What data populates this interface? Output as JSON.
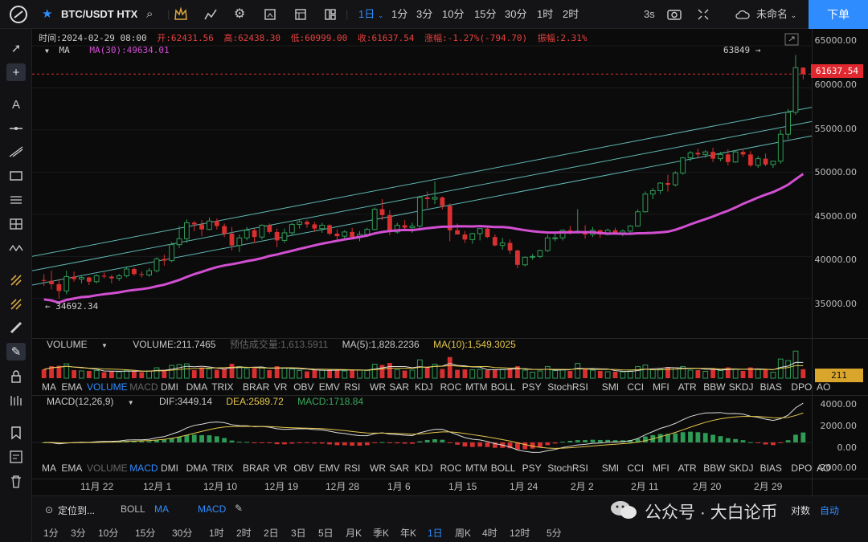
{
  "topbar": {
    "symbol": "BTC/USDT HTX",
    "timeframes": [
      "1日",
      "1分",
      "3分",
      "10分",
      "15分",
      "30分",
      "1时",
      "2时"
    ],
    "active_timeframe": "1日",
    "interval_label": "3s",
    "layout_name": "未命名",
    "order_button": "下单"
  },
  "ohlc": {
    "time": "时间:2024-02-29 08:00",
    "open": "开:62431.56",
    "high": "高:62438.30",
    "low": "低:60999.00",
    "close": "收:61637.54",
    "change": "涨幅:-1.27%(-794.70)",
    "amplitude": "振幅:2.31%"
  },
  "ma_legend": {
    "label": "MA",
    "value": "MA(30):49634.01"
  },
  "price_axis": {
    "ticks": [
      "65000.00",
      "60000.00",
      "55000.00",
      "50000.00",
      "45000.00",
      "40000.00",
      "35000.00"
    ],
    "current_price": "61637.54",
    "high_marker": "63849",
    "low_marker": "34692.34"
  },
  "volume_panel": {
    "label": "VOLUME",
    "volume": "VOLUME:211.7465",
    "estimated": "预估成交量:1,613.5911",
    "ma5": "MA(5):1,828.2236",
    "ma10": "MA(10):1,549.3025",
    "current": "211"
  },
  "indicator_tabs": [
    "MA",
    "EMA",
    "VOLUME",
    "MACD",
    "DMI",
    "DMA",
    "TRIX",
    "BRAR",
    "VR",
    "OBV",
    "EMV",
    "RSI",
    "WR",
    "SAR",
    "KDJ",
    "ROC",
    "MTM",
    "BOLL",
    "PSY",
    "StochRSI",
    "SMI",
    "CCI",
    "MFI",
    "ATR",
    "BBW",
    "SKDJ",
    "BIAS",
    "DPO",
    "AO"
  ],
  "macd_panel": {
    "label": "MACD(12,26,9)",
    "dif": "DIF:3449.14",
    "dea": "DEA:2589.72",
    "macd": "MACD:1718.84",
    "ticks": [
      "4000.00",
      "2000.00",
      "0.00",
      "-2000.00"
    ]
  },
  "date_axis": [
    "11月 22",
    "12月 1",
    "12月 10",
    "12月 19",
    "12月 28",
    "1月 6",
    "1月 15",
    "1月 24",
    "2月 2",
    "2月 11",
    "2月 20",
    "2月 29"
  ],
  "bottombar": {
    "locate": "定位到...",
    "indicators": [
      "BOLL",
      "MA",
      "MACD"
    ],
    "periods": [
      "1分",
      "3分",
      "10分",
      "15分",
      "30分",
      "1时",
      "2时",
      "2日",
      "3日",
      "5日",
      "月K",
      "季K",
      "年K",
      "1日",
      "周K",
      "4时",
      "12时",
      "5分"
    ],
    "active_period": "1日",
    "watermark": "公众号 · 大白论币",
    "auto": "自动",
    "log": "对数"
  },
  "chart_data": {
    "type": "candlestick",
    "ylim": [
      30500,
      67000
    ],
    "candles": [
      [
        37200,
        37900,
        36500,
        37100
      ],
      [
        37100,
        38300,
        36100,
        36700
      ],
      [
        36700,
        37300,
        35000,
        35900
      ],
      [
        35900,
        38300,
        35500,
        37600
      ],
      [
        37600,
        38200,
        37000,
        37300
      ],
      [
        37300,
        37800,
        36800,
        37500
      ],
      [
        37500,
        37600,
        36600,
        37000
      ],
      [
        37000,
        37900,
        36800,
        37700
      ],
      [
        37700,
        38100,
        37400,
        37600
      ],
      [
        37600,
        37800,
        36800,
        37400
      ],
      [
        37400,
        37900,
        37100,
        37700
      ],
      [
        37700,
        38700,
        37500,
        38500
      ],
      [
        38500,
        38700,
        37700,
        37900
      ],
      [
        37900,
        38200,
        37500,
        37800
      ],
      [
        37800,
        38600,
        37600,
        38300
      ],
      [
        38300,
        39900,
        38100,
        39700
      ],
      [
        39700,
        40200,
        38900,
        39500
      ],
      [
        39500,
        41700,
        39300,
        41400
      ],
      [
        41400,
        43600,
        41000,
        42100
      ],
      [
        42100,
        44400,
        41600,
        44000
      ],
      [
        44000,
        44200,
        43000,
        43800
      ],
      [
        43800,
        44300,
        42400,
        43200
      ],
      [
        43200,
        44600,
        43100,
        44200
      ],
      [
        44200,
        44500,
        43200,
        43600
      ],
      [
        43600,
        43900,
        42300,
        42700
      ],
      [
        42700,
        43500,
        40700,
        41300
      ],
      [
        41300,
        42600,
        40500,
        42200
      ],
      [
        42200,
        43500,
        41900,
        43100
      ],
      [
        43100,
        43300,
        41600,
        42300
      ],
      [
        42300,
        43800,
        42000,
        43700
      ],
      [
        43700,
        43900,
        42700,
        42900
      ],
      [
        42900,
        43300,
        41100,
        41900
      ],
      [
        41900,
        43300,
        41600,
        42800
      ],
      [
        42800,
        44000,
        42500,
        43800
      ],
      [
        43800,
        44400,
        43300,
        44100
      ],
      [
        44100,
        44300,
        43400,
        43800
      ],
      [
        43800,
        44100,
        42900,
        43300
      ],
      [
        43300,
        44000,
        42800,
        43700
      ],
      [
        43700,
        43800,
        42500,
        42700
      ],
      [
        42700,
        43200,
        41800,
        42400
      ],
      [
        42400,
        43100,
        42100,
        42900
      ],
      [
        42900,
        43400,
        42000,
        42300
      ],
      [
        42300,
        43000,
        41800,
        42600
      ],
      [
        42600,
        43400,
        42300,
        43200
      ],
      [
        43200,
        45800,
        43100,
        45600
      ],
      [
        45600,
        46800,
        44300,
        44900
      ],
      [
        44900,
        45500,
        42500,
        42900
      ],
      [
        42900,
        44000,
        42700,
        43700
      ],
      [
        43700,
        44300,
        43200,
        43400
      ],
      [
        43400,
        44000,
        42800,
        43600
      ],
      [
        43600,
        47200,
        43400,
        47000
      ],
      [
        47000,
        47700,
        45700,
        46800
      ],
      [
        46800,
        48900,
        46200,
        47000
      ],
      [
        47000,
        47100,
        45600,
        46000
      ],
      [
        46000,
        46300,
        41800,
        43100
      ],
      [
        43100,
        43900,
        42600,
        42600
      ],
      [
        42600,
        43000,
        41600,
        42000
      ],
      [
        42000,
        42800,
        41500,
        42700
      ],
      [
        42700,
        43300,
        41900,
        43300
      ],
      [
        43300,
        43400,
        42200,
        42300
      ],
      [
        42300,
        42600,
        41200,
        41300
      ],
      [
        41300,
        42200,
        40800,
        41600
      ],
      [
        41600,
        42000,
        40300,
        40700
      ],
      [
        40700,
        40800,
        38600,
        39000
      ],
      [
        39000,
        40000,
        38800,
        39900
      ],
      [
        39900,
        40300,
        39600,
        40000
      ],
      [
        40000,
        40800,
        39800,
        40700
      ],
      [
        40700,
        42600,
        40500,
        42200
      ],
      [
        42200,
        42900,
        41800,
        42200
      ],
      [
        42200,
        43200,
        41900,
        43100
      ],
      [
        43100,
        43600,
        42600,
        42800
      ],
      [
        42800,
        45600,
        42700,
        43000
      ],
      [
        43000,
        43700,
        42100,
        42600
      ],
      [
        42600,
        43500,
        42300,
        43100
      ],
      [
        43100,
        43200,
        42200,
        42600
      ],
      [
        42600,
        43300,
        42500,
        43100
      ],
      [
        43100,
        43400,
        42600,
        42800
      ],
      [
        42800,
        43200,
        42400,
        43000
      ],
      [
        43000,
        43700,
        42700,
        43600
      ],
      [
        43600,
        45600,
        43500,
        45300
      ],
      [
        45300,
        47700,
        45200,
        47400
      ],
      [
        47400,
        48100,
        46800,
        47800
      ],
      [
        47800,
        48800,
        47400,
        48700
      ],
      [
        48700,
        49700,
        47700,
        48500
      ],
      [
        48500,
        50100,
        48300,
        49900
      ],
      [
        49900,
        51800,
        49700,
        51700
      ],
      [
        51700,
        52500,
        51300,
        52300
      ],
      [
        52300,
        52800,
        51600,
        52100
      ],
      [
        52100,
        52600,
        51700,
        52400
      ],
      [
        52400,
        52900,
        51200,
        51600
      ],
      [
        51600,
        52400,
        51300,
        52100
      ],
      [
        52100,
        52700,
        50800,
        51200
      ],
      [
        51200,
        52600,
        51100,
        52400
      ],
      [
        52400,
        52800,
        51800,
        52100
      ],
      [
        52100,
        52500,
        50600,
        50800
      ],
      [
        50800,
        51900,
        50500,
        51600
      ],
      [
        51600,
        52200,
        50700,
        50900
      ],
      [
        50900,
        51200,
        50500,
        51300
      ],
      [
        51300,
        55000,
        51000,
        54500
      ],
      [
        54500,
        57500,
        53900,
        57100
      ],
      [
        57100,
        63900,
        56800,
        62400
      ],
      [
        62400,
        62440,
        61000,
        61640
      ]
    ],
    "ma30_end": 49634.01,
    "volume_ylim": [
      0,
      8000
    ],
    "macd_ylim": [
      -2600,
      4300
    ]
  }
}
